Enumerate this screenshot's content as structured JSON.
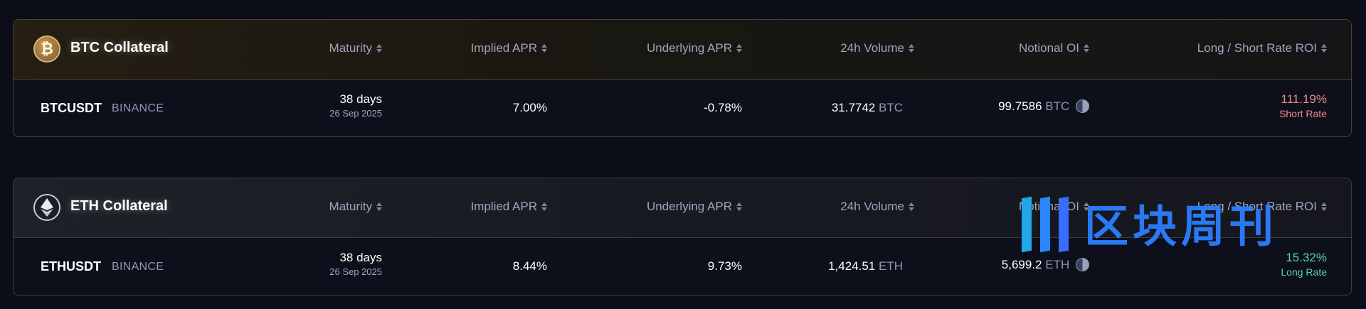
{
  "columns": [
    "Maturity",
    "Implied APR",
    "Underlying APR",
    "24h Volume",
    "Notional OI",
    "Long / Short Rate ROI"
  ],
  "sections": [
    {
      "title": "BTC Collateral",
      "icon": "bitcoin-icon",
      "row": {
        "pair": "BTCUSDT",
        "exchange": "BINANCE",
        "maturity_days": "38 days",
        "maturity_date": "26 Sep 2025",
        "implied_apr": "7.00%",
        "underlying_apr": "-0.78%",
        "volume_value": "31.7742",
        "volume_unit": "BTC",
        "oi_value": "99.7586",
        "oi_unit": "BTC",
        "roi": "111.19%",
        "roi_label": "Short Rate"
      }
    },
    {
      "title": "ETH Collateral",
      "icon": "ethereum-icon",
      "row": {
        "pair": "ETHUSDT",
        "exchange": "BINANCE",
        "maturity_days": "38 days",
        "maturity_date": "26 Sep 2025",
        "implied_apr": "8.44%",
        "underlying_apr": "9.73%",
        "volume_value": "1,424.51",
        "volume_unit": "ETH",
        "oi_value": "5,699.2",
        "oi_unit": "ETH",
        "roi": "15.32%",
        "roi_label": "Long Rate"
      }
    }
  ],
  "watermark": "区块周刊",
  "colors": {
    "short_rate": "#f08a8a",
    "long_rate": "#59d4a4",
    "background": "#0b0d18"
  }
}
